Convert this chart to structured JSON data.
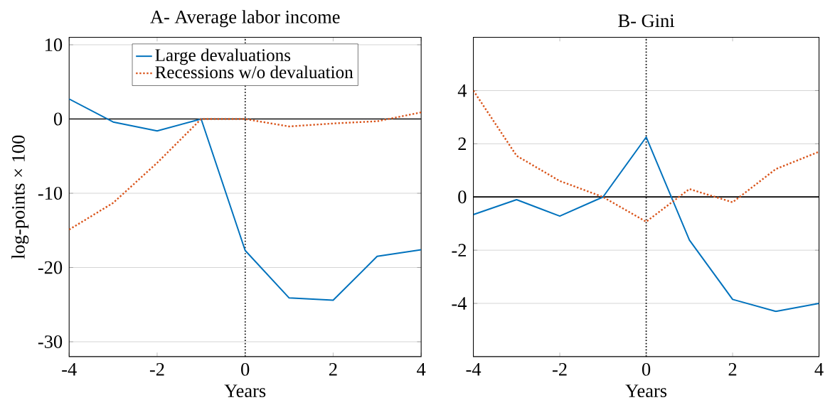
{
  "chart_data": [
    {
      "type": "line",
      "title": "A- Average labor income",
      "xlabel": "Years",
      "ylabel": "log-points × 100",
      "x": [
        -4,
        -3,
        -2,
        -1,
        0,
        1,
        2,
        3,
        4
      ],
      "series": [
        {
          "name": "Large devaluations",
          "color": "#0072bd",
          "line_style": "solid",
          "values": [
            2.7,
            -0.4,
            -1.6,
            0,
            -17.7,
            -24.1,
            -24.4,
            -18.5,
            -17.6
          ]
        },
        {
          "name": "Recessions w/o devaluation",
          "color": "#d95319",
          "line_style": "dotted",
          "values": [
            -14.9,
            -11.3,
            -5.9,
            0,
            0,
            -1.0,
            -0.6,
            -0.3,
            0.9
          ]
        }
      ],
      "xlim": [
        -4,
        4
      ],
      "ylim": [
        -32,
        11
      ],
      "xticks": [
        -4,
        -2,
        0,
        2,
        4
      ],
      "yticks": [
        -30,
        -20,
        -10,
        0,
        10
      ],
      "ref_lines": [
        {
          "axis": "y",
          "value": 0,
          "color": "#000000",
          "line_style": "solid"
        },
        {
          "axis": "x",
          "value": 0,
          "color": "#000000",
          "line_style": "dotted"
        }
      ],
      "grid": "y",
      "legend": "top",
      "marker": "none"
    },
    {
      "type": "line",
      "title": "B- Gini",
      "xlabel": "Years",
      "x": [
        -4,
        -3,
        -2,
        -1,
        0,
        1,
        2,
        3,
        4
      ],
      "series": [
        {
          "color": "#0072bd",
          "line_style": "solid",
          "values": [
            -0.66,
            -0.1,
            -0.72,
            0,
            2.25,
            -1.62,
            -3.85,
            -4.3,
            -4.0
          ]
        },
        {
          "color": "#d95319",
          "line_style": "dotted",
          "values": [
            4.0,
            1.55,
            0.6,
            0,
            -0.93,
            0.3,
            -0.2,
            1.05,
            1.7
          ]
        }
      ],
      "xlim": [
        -4,
        4
      ],
      "ylim": [
        -6,
        6
      ],
      "xticks": [
        -4,
        -2,
        0,
        2,
        4
      ],
      "yticks": [
        -4,
        -2,
        0,
        2,
        4
      ],
      "ref_lines": [
        {
          "axis": "y",
          "value": 0,
          "color": "#000000",
          "line_style": "solid"
        },
        {
          "axis": "x",
          "value": 0,
          "color": "#000000",
          "line_style": "dotted"
        }
      ],
      "grid": "y",
      "marker": "none"
    }
  ]
}
